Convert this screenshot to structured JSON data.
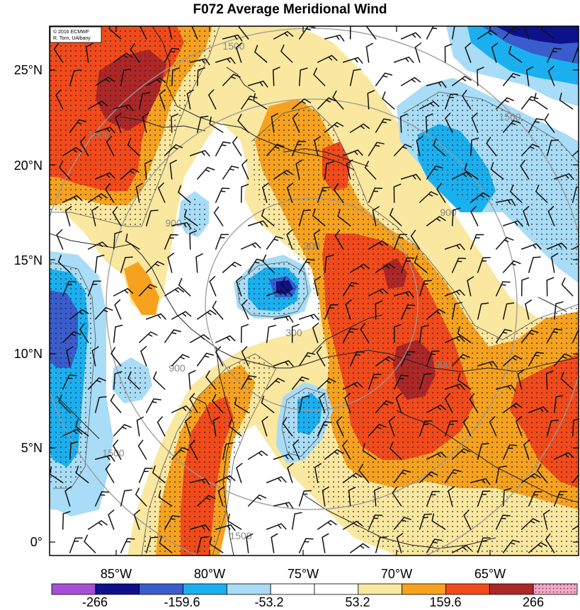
{
  "title": "F072 Average Meridional Wind",
  "credit": [
    "© 2016 ECMWF",
    "R. Torn, UAlbany"
  ],
  "latitude_labels": [
    "25°N",
    "20°N",
    "15°N",
    "10°N",
    "5°N",
    "0°"
  ],
  "longitude_labels": [
    "85°W",
    "80°W",
    "75°W",
    "70°W",
    "65°W"
  ],
  "range_ring_labels": [
    "300",
    "300",
    "900",
    "900",
    "900",
    "900",
    "1500",
    "1500",
    "1500",
    "1500",
    "1500"
  ],
  "colorbar": {
    "labels": [
      "-266",
      "-159.6",
      "-53.2",
      "53.2",
      "159.6",
      "266"
    ],
    "colors": [
      "#a64fd6",
      "#0d128c",
      "#3a5ccc",
      "#1ab0f0",
      "#a9dcf6",
      "#ffffff",
      "#ffffff",
      "#fae7a0",
      "#f6a21f",
      "#f24a1a",
      "#ad2727",
      "#f6a6c8"
    ]
  },
  "colors": {
    "contour": "#555555",
    "ring": "#9a9a9a",
    "ring_label": "#888888",
    "coast": "#222222",
    "barb": "#111111"
  }
}
